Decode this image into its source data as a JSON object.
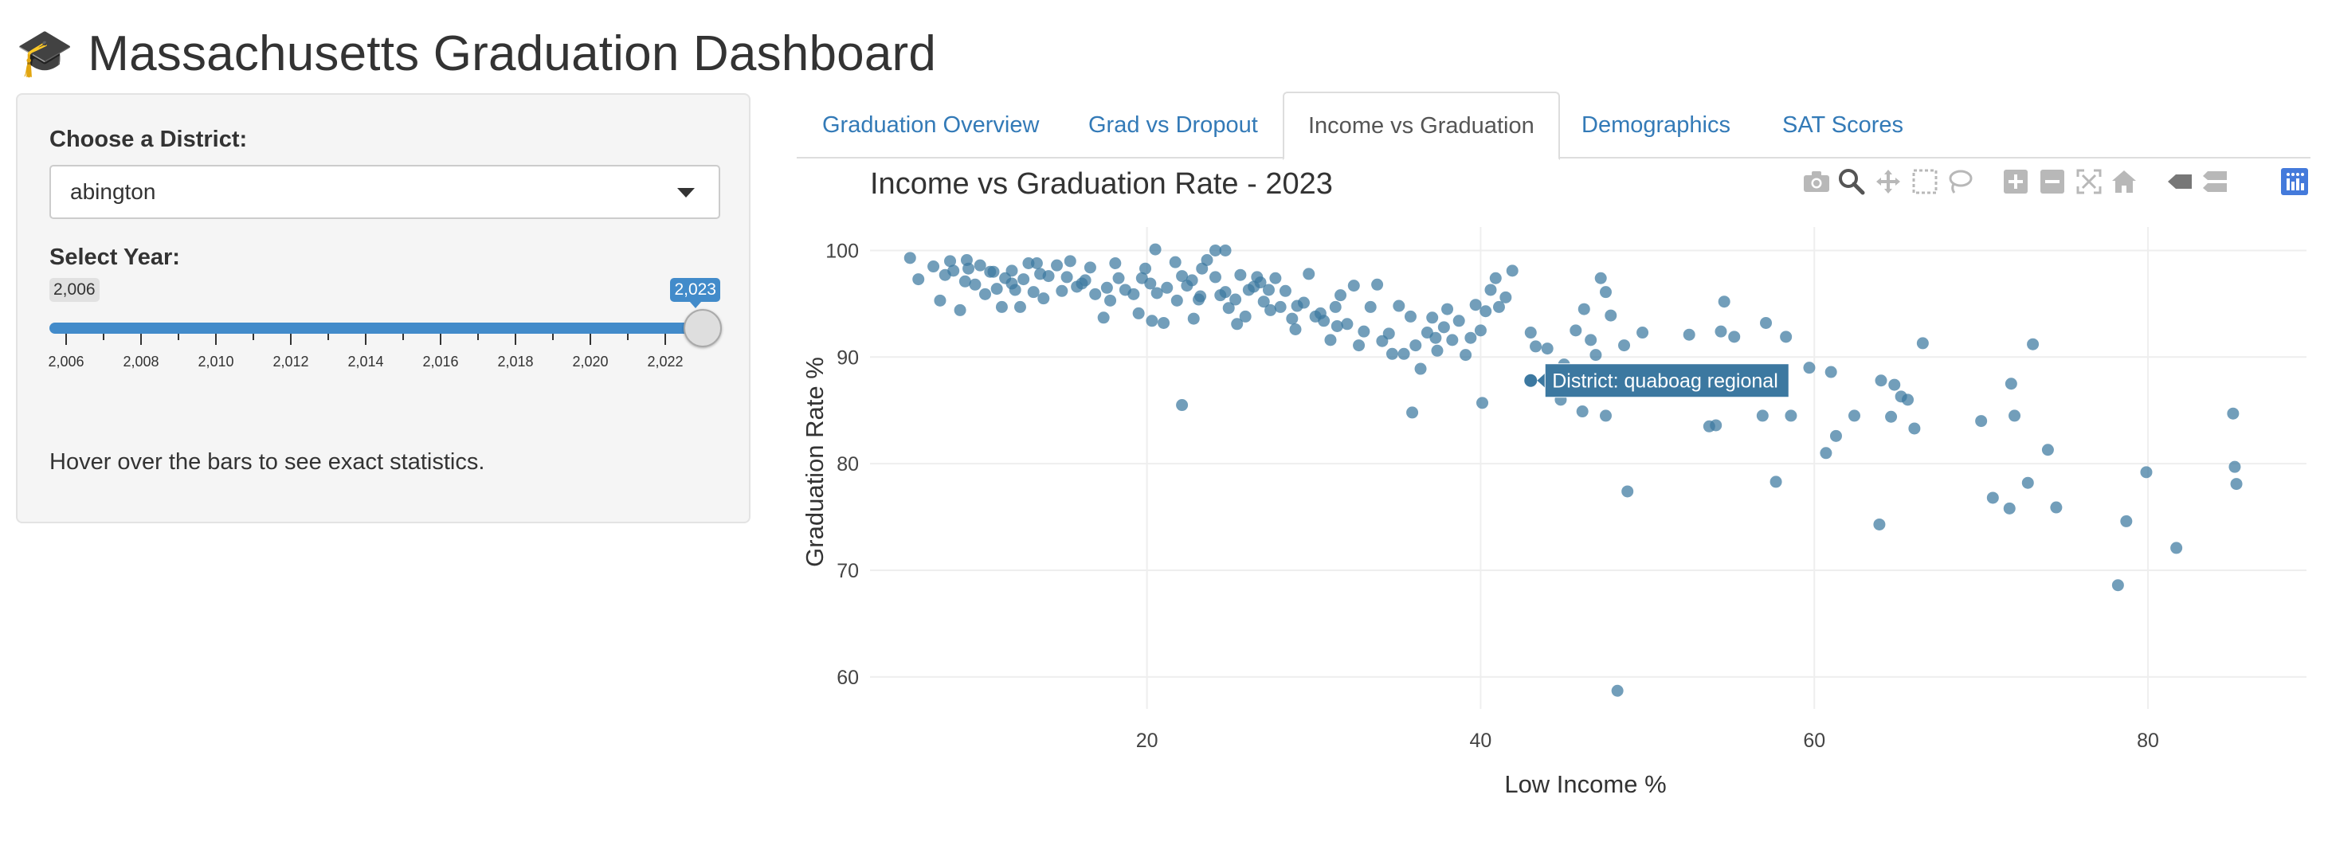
{
  "header": {
    "icon": "graduation-cap-icon",
    "icon_glyph": "🎓",
    "title": "Massachusetts Graduation Dashboard"
  },
  "sidebar": {
    "district_label": "Choose a District:",
    "district_value": "abington",
    "year_label": "Select Year:",
    "year_min": "2,006",
    "year_max": "2,023",
    "year_selected": 2023,
    "ticks": [
      "2,006",
      "2,008",
      "2,010",
      "2,012",
      "2,014",
      "2,016",
      "2,018",
      "2,020",
      "2,022"
    ],
    "hint": "Hover over the bars to see exact statistics."
  },
  "tabs": [
    {
      "label": "Graduation Overview",
      "active": false
    },
    {
      "label": "Grad vs Dropout",
      "active": false
    },
    {
      "label": "Income vs Graduation",
      "active": true
    },
    {
      "label": "Demographics",
      "active": false
    },
    {
      "label": "SAT Scores",
      "active": false
    }
  ],
  "modebar": [
    "camera-icon",
    "zoom-icon",
    "pan-icon",
    "box-select-icon",
    "lasso-select-icon",
    "zoom-in-icon",
    "zoom-out-icon",
    "autoscale-icon",
    "reset-axes-icon",
    "spike-lines-icon",
    "compare-hover-icon",
    "plotly-logo-icon"
  ],
  "colors": {
    "accent": "#428bca",
    "link": "#337ab7",
    "marker": "#3c78a0",
    "tooltip": "#3c78a0"
  },
  "chart_data": {
    "type": "scatter",
    "title": "Income vs Graduation Rate - 2023",
    "xlabel": "Low Income %",
    "ylabel": "Graduation Rate %",
    "xlim": [
      3.4,
      89.5
    ],
    "ylim": [
      57,
      102.2
    ],
    "xticks": [
      20,
      40,
      60,
      80
    ],
    "yticks": [
      60,
      70,
      80,
      90,
      100
    ],
    "grid": true,
    "tooltip": {
      "text": "District: quaboag regional",
      "x": 43,
      "y": 87.8
    },
    "points": [
      [
        5.8,
        99.3
      ],
      [
        6.3,
        97.3
      ],
      [
        7.2,
        98.5
      ],
      [
        7.6,
        95.3
      ],
      [
        7.9,
        97.7
      ],
      [
        8.2,
        99
      ],
      [
        8.4,
        98.1
      ],
      [
        8.8,
        94.4
      ],
      [
        9.2,
        99.1
      ],
      [
        9.3,
        98.3
      ],
      [
        9.7,
        96.8
      ],
      [
        10,
        98.6
      ],
      [
        10.3,
        95.9
      ],
      [
        10.6,
        98
      ],
      [
        11,
        96.4
      ],
      [
        11.3,
        94.7
      ],
      [
        11.5,
        97.4
      ],
      [
        11.9,
        98.1
      ],
      [
        12.1,
        96.3
      ],
      [
        12.4,
        94.7
      ],
      [
        12.6,
        97.3
      ],
      [
        12.9,
        98.8
      ],
      [
        13.2,
        96.1
      ],
      [
        13.6,
        97.8
      ],
      [
        13.8,
        95.5
      ],
      [
        14.1,
        97.6
      ],
      [
        14.6,
        98.6
      ],
      [
        14.9,
        96.2
      ],
      [
        15.2,
        97.5
      ],
      [
        15.4,
        99
      ],
      [
        15.8,
        96.6
      ],
      [
        16.3,
        97.2
      ],
      [
        16.6,
        98.4
      ],
      [
        16.9,
        95.9
      ],
      [
        17.4,
        93.7
      ],
      [
        17.6,
        96.5
      ],
      [
        18.1,
        98.8
      ],
      [
        18.3,
        97.4
      ],
      [
        18.7,
        96.3
      ],
      [
        19.2,
        95.9
      ],
      [
        19.5,
        94.1
      ],
      [
        19.9,
        98.3
      ],
      [
        20.2,
        96.9
      ],
      [
        20.6,
        96
      ],
      [
        21,
        93.2
      ],
      [
        21.2,
        96.5
      ],
      [
        21.7,
        98.9
      ],
      [
        22.1,
        97.6
      ],
      [
        22.4,
        96.7
      ],
      [
        22.7,
        97.2
      ],
      [
        23.1,
        95.4
      ],
      [
        23.3,
        98.3
      ],
      [
        23.6,
        99.1
      ],
      [
        24.1,
        97.5
      ],
      [
        24.4,
        95.8
      ],
      [
        24.7,
        96.1
      ],
      [
        24.9,
        94.6
      ],
      [
        25.3,
        95.4
      ],
      [
        25.6,
        97.7
      ],
      [
        25.9,
        93.8
      ],
      [
        26.1,
        96.3
      ],
      [
        26.4,
        96.6
      ],
      [
        26.8,
        97
      ],
      [
        27,
        95.2
      ],
      [
        27.4,
        94.4
      ],
      [
        27.7,
        97.4
      ],
      [
        28,
        94.7
      ],
      [
        28.3,
        96.2
      ],
      [
        28.7,
        93.6
      ],
      [
        29,
        94.8
      ],
      [
        29.4,
        95.1
      ],
      [
        29.7,
        97.8
      ],
      [
        30.1,
        93.8
      ],
      [
        30.4,
        94.1
      ],
      [
        30.6,
        93.4
      ],
      [
        31,
        91.6
      ],
      [
        31.3,
        94.7
      ],
      [
        31.6,
        95.8
      ],
      [
        32,
        93.1
      ],
      [
        32.4,
        96.7
      ],
      [
        32.7,
        91.1
      ],
      [
        33,
        92.4
      ],
      [
        33.4,
        94.7
      ],
      [
        33.8,
        96.8
      ],
      [
        34.1,
        91.5
      ],
      [
        34.5,
        92.2
      ],
      [
        34.7,
        90.3
      ],
      [
        35.1,
        94.8
      ],
      [
        35.4,
        90.3
      ],
      [
        35.8,
        93.8
      ],
      [
        36.1,
        91.1
      ],
      [
        36.4,
        88.9
      ],
      [
        36.8,
        92.3
      ],
      [
        37.1,
        93.7
      ],
      [
        37.4,
        90.6
      ],
      [
        37.8,
        92.8
      ],
      [
        38,
        94.5
      ],
      [
        38.3,
        91.6
      ],
      [
        38.7,
        93.4
      ],
      [
        39.1,
        90.2
      ],
      [
        39.4,
        91.8
      ],
      [
        39.7,
        94.9
      ],
      [
        40,
        92.5
      ],
      [
        40.3,
        94.3
      ],
      [
        40.6,
        96.3
      ],
      [
        40.9,
        97.4
      ],
      [
        41.1,
        94.7
      ],
      [
        41.5,
        95.6
      ],
      [
        41.9,
        98.1
      ],
      [
        43,
        92.3
      ],
      [
        43.3,
        91
      ],
      [
        44,
        90.8
      ],
      [
        45,
        89.3
      ],
      [
        45.7,
        92.5
      ],
      [
        46.2,
        94.5
      ],
      [
        46.6,
        91.6
      ],
      [
        46.9,
        90.2
      ],
      [
        47.2,
        97.4
      ],
      [
        47.5,
        96.1
      ],
      [
        47.8,
        93.9
      ],
      [
        48.6,
        91.1
      ],
      [
        49.7,
        92.3
      ],
      [
        52.5,
        92.1
      ],
      [
        53.7,
        83.5
      ],
      [
        54.1,
        83.6
      ],
      [
        54.4,
        92.4
      ],
      [
        54.6,
        95.2
      ],
      [
        55.2,
        91.9
      ],
      [
        56.9,
        84.5
      ],
      [
        57.1,
        93.2
      ],
      [
        57.7,
        78.3
      ],
      [
        58.3,
        91.9
      ],
      [
        58.6,
        84.5
      ],
      [
        59.7,
        89
      ],
      [
        60.7,
        81
      ],
      [
        61,
        88.6
      ],
      [
        61.3,
        82.6
      ],
      [
        62.4,
        84.5
      ],
      [
        63.9,
        74.3
      ],
      [
        64,
        87.8
      ],
      [
        64.6,
        84.4
      ],
      [
        64.8,
        87.4
      ],
      [
        65.2,
        86.3
      ],
      [
        65.6,
        86
      ],
      [
        66,
        83.3
      ],
      [
        66.5,
        91.3
      ],
      [
        70,
        84
      ],
      [
        70.7,
        76.8
      ],
      [
        71.7,
        75.8
      ],
      [
        71.8,
        87.5
      ],
      [
        72,
        84.5
      ],
      [
        72.8,
        78.2
      ],
      [
        73.1,
        91.2
      ],
      [
        74,
        81.3
      ],
      [
        74.5,
        75.9
      ],
      [
        78.2,
        68.6
      ],
      [
        78.7,
        74.6
      ],
      [
        79.9,
        79.2
      ],
      [
        81.7,
        72.1
      ],
      [
        85.1,
        84.7
      ],
      [
        85.2,
        79.7
      ],
      [
        85.3,
        78.1
      ],
      [
        22.1,
        85.5
      ],
      [
        35.9,
        84.8
      ],
      [
        40.1,
        85.7
      ],
      [
        44.8,
        86
      ],
      [
        46.1,
        84.9
      ],
      [
        47.5,
        84.5
      ],
      [
        48.8,
        77.4
      ],
      [
        48.2,
        58.7
      ],
      [
        20.3,
        93.4
      ],
      [
        21.8,
        95.3
      ],
      [
        23.2,
        95.7
      ],
      [
        26.6,
        97.5
      ],
      [
        27.3,
        96.3
      ],
      [
        24.1,
        100
      ],
      [
        24.7,
        100
      ],
      [
        20.5,
        100.1
      ],
      [
        16.1,
        96.9
      ],
      [
        13.4,
        98.8
      ],
      [
        9.1,
        97.1
      ],
      [
        10.8,
        98
      ],
      [
        11.9,
        96.9
      ],
      [
        17.8,
        95.3
      ],
      [
        19.7,
        97.4
      ],
      [
        22.8,
        93.6
      ],
      [
        25.4,
        93.1
      ],
      [
        28.9,
        92.6
      ],
      [
        31.4,
        92.9
      ],
      [
        37.3,
        91.8
      ]
    ]
  }
}
